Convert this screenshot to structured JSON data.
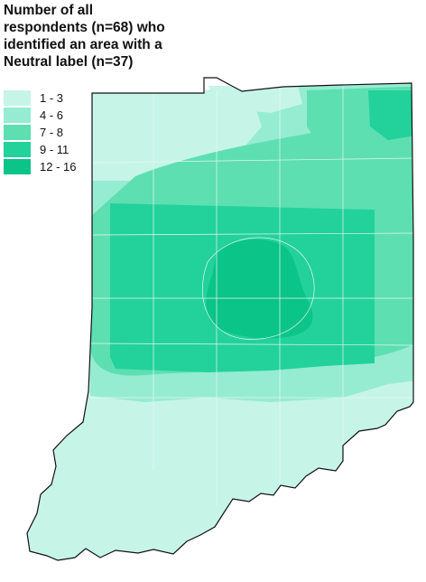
{
  "map": {
    "title": "Number of all\nrespondents (n=68) who\nidentified an area with a\nNeutral label (n=37)",
    "legend": [
      {
        "label": "1 - 3",
        "color": "#c6f5e8"
      },
      {
        "label": "4 - 6",
        "color": "#95ecd1"
      },
      {
        "label": "7 - 8",
        "color": "#5ddfb2"
      },
      {
        "label": "9 - 11",
        "color": "#22d29a"
      },
      {
        "label": "12 - 16",
        "color": "#0bc487"
      }
    ],
    "region": "Indiana",
    "outline_color": "#111111",
    "county_line_color": "#e6f7ef"
  }
}
